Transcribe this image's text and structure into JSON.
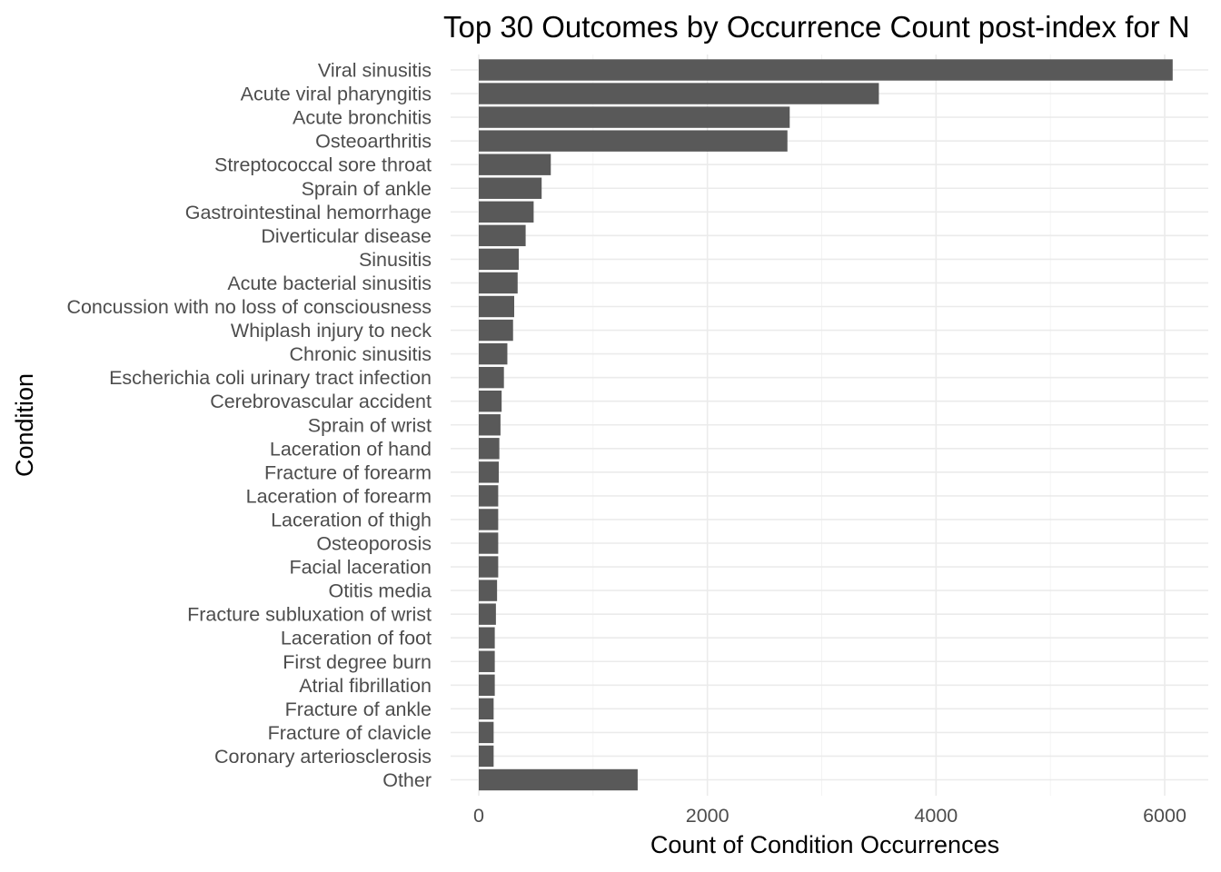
{
  "chart_data": {
    "type": "bar",
    "orientation": "horizontal",
    "title": "Top 30 Outcomes by Occurrence Count post-index for N",
    "xlabel": "Count of Condition Occurrences",
    "ylabel": "Condition",
    "xlim": [
      0,
      6400
    ],
    "xticks": [
      0,
      2000,
      4000,
      6000
    ],
    "grid": true,
    "bar_color": "#595959",
    "categories": [
      "Viral sinusitis",
      "Acute viral pharyngitis",
      "Acute bronchitis",
      "Osteoarthritis",
      "Streptococcal sore throat",
      "Sprain of ankle",
      "Gastrointestinal hemorrhage",
      "Diverticular disease",
      "Sinusitis",
      "Acute bacterial sinusitis",
      "Concussion with no loss of consciousness",
      "Whiplash injury to neck",
      "Chronic sinusitis",
      "Escherichia coli urinary tract infection",
      "Cerebrovascular accident",
      "Sprain of wrist",
      "Laceration of hand",
      "Fracture of forearm",
      "Laceration of forearm",
      "Laceration of thigh",
      "Osteoporosis",
      "Facial laceration",
      "Otitis media",
      "Fracture subluxation of wrist",
      "Laceration of foot",
      "First degree burn",
      "Atrial fibrillation",
      "Fracture of ankle",
      "Fracture of clavicle",
      "Coronary arteriosclerosis",
      "Other"
    ],
    "values": [
      6070,
      3500,
      2720,
      2700,
      630,
      550,
      480,
      410,
      350,
      340,
      310,
      300,
      250,
      220,
      200,
      190,
      180,
      175,
      170,
      170,
      170,
      170,
      160,
      150,
      140,
      140,
      140,
      130,
      130,
      130,
      1390
    ]
  }
}
